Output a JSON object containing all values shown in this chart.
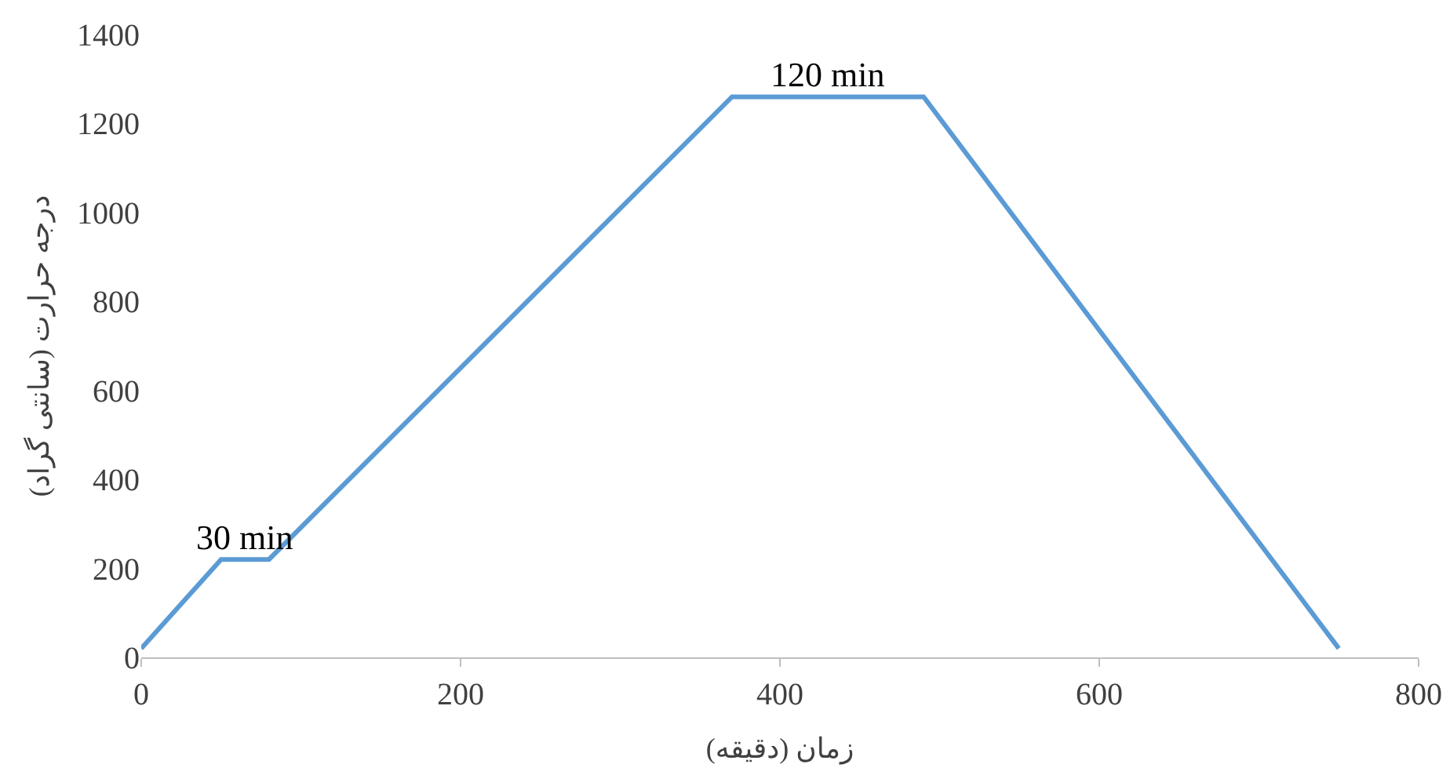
{
  "chart_data": {
    "type": "line",
    "xlabel": "زمان (دقیقه)",
    "ylabel": "درجه حرارت (سانتی گراد)",
    "series": [
      {
        "color": "#5b9bd5",
        "x": [
          0,
          50,
          80,
          370,
          490,
          750
        ],
        "values": [
          20,
          220,
          220,
          1260,
          1260,
          20
        ]
      }
    ],
    "xlim": [
      0,
      800
    ],
    "xticks": [
      0,
      200,
      400,
      600,
      800
    ],
    "ylim": [
      0,
      1400
    ],
    "yticks": [
      0,
      200,
      400,
      600,
      800,
      1000,
      1200,
      1400
    ],
    "grid": false,
    "marker": "none",
    "line_style": "solid",
    "annotations": [
      {
        "text": "30 min",
        "x": 65,
        "y": 220
      },
      {
        "text": "120 min",
        "x": 430,
        "y": 1260
      }
    ]
  }
}
